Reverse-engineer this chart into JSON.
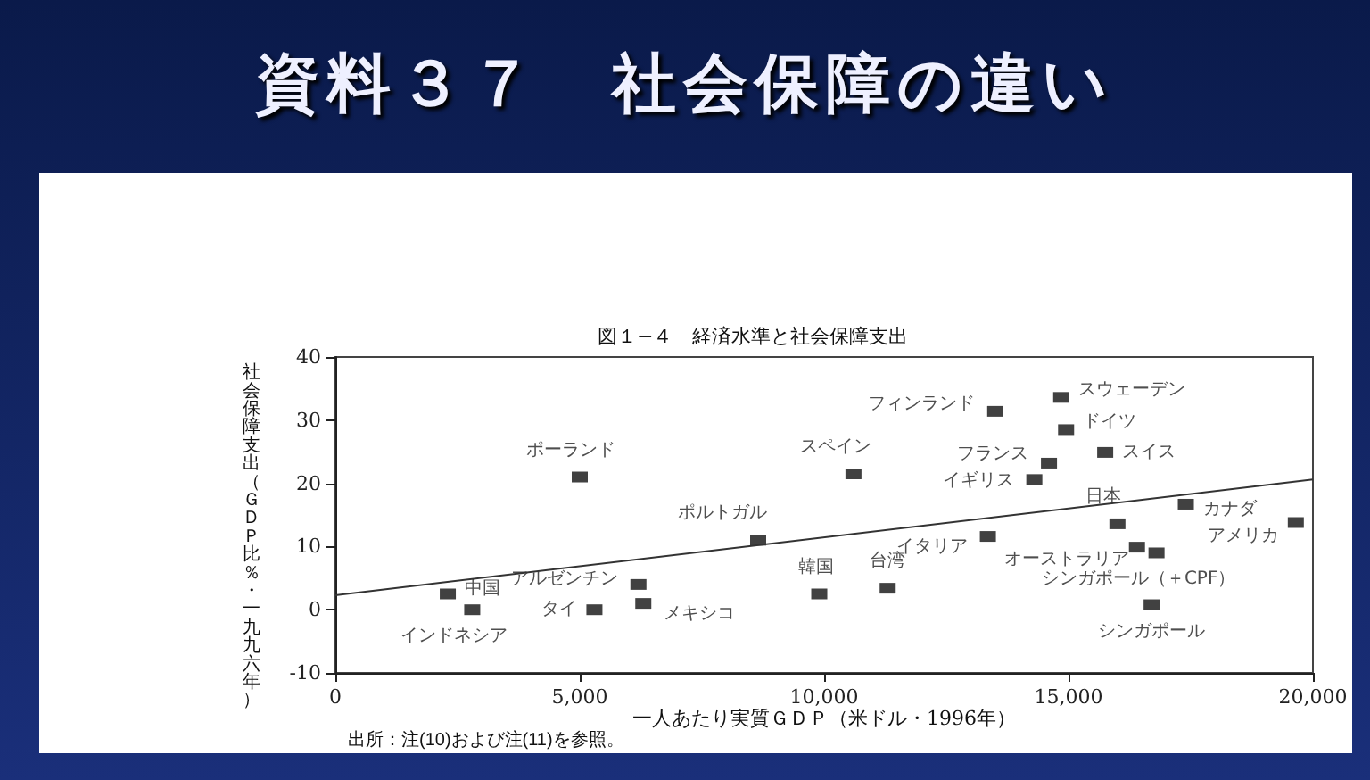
{
  "chart_data": {
    "type": "scatter",
    "title": "資料３７　社会保障の違い",
    "subtitle": "図１−４　経済水準と社会保障支出",
    "xlabel": "一人あたり実質ＧＤＰ（米ドル・1996年）",
    "ylabel": "社会保障支出（ＧＤＰ比％・一九九六年）",
    "annotations": [
      "出所：注(10)および注(11)を参照。"
    ],
    "xlim": [
      0,
      20000
    ],
    "xticks": [
      0,
      {
        "value": 5000,
        "label": "5,000"
      },
      {
        "value": 10000,
        "label": "10,000"
      },
      {
        "value": 15000,
        "label": "15,000"
      },
      {
        "value": 20000,
        "label": "20,000"
      }
    ],
    "ylim": [
      -10,
      40
    ],
    "yticks": [
      -10,
      0,
      10,
      20,
      30,
      40
    ],
    "marker": "square",
    "grid": false,
    "series": [
      {
        "name": "中国",
        "color": "#111111",
        "x": [
          2300
        ],
        "values": [
          2.5
        ]
      },
      {
        "name": "インドネシア",
        "color": "#111111",
        "x": [
          2800
        ],
        "values": [
          0
        ]
      },
      {
        "name": "ポーランド",
        "color": "#111111",
        "x": [
          5000
        ],
        "values": [
          21
        ]
      },
      {
        "name": "タイ",
        "color": "#111111",
        "x": [
          5300
        ],
        "values": [
          0
        ]
      },
      {
        "name": "アルゼンチン",
        "color": "#111111",
        "x": [
          6200
        ],
        "values": [
          4
        ]
      },
      {
        "name": "メキシコ",
        "color": "#111111",
        "x": [
          6300
        ],
        "values": [
          1
        ]
      },
      {
        "name": "ポルトガル",
        "color": "#111111",
        "x": [
          8650
        ],
        "values": [
          11
        ]
      },
      {
        "name": "韓国",
        "color": "#111111",
        "x": [
          9900
        ],
        "values": [
          2.5
        ]
      },
      {
        "name": "台湾",
        "color": "#111111",
        "x": [
          11300
        ],
        "values": [
          3.4
        ]
      },
      {
        "name": "スペイン",
        "color": "#111111",
        "x": [
          10600
        ],
        "values": [
          21.5
        ]
      },
      {
        "name": "イタリア",
        "color": "#111111",
        "x": [
          13350
        ],
        "values": [
          11.6
        ]
      },
      {
        "name": "フィンランド",
        "color": "#111111",
        "x": [
          13500
        ],
        "values": [
          31.4
        ]
      },
      {
        "name": "イギリス",
        "color": "#111111",
        "x": [
          14300
        ],
        "values": [
          20.6
        ]
      },
      {
        "name": "フランス",
        "color": "#111111",
        "x": [
          14600
        ],
        "values": [
          23.2
        ]
      },
      {
        "name": "スウェーデン",
        "color": "#111111",
        "x": [
          14850
        ],
        "values": [
          33.6
        ]
      },
      {
        "name": "ドイツ",
        "color": "#111111",
        "x": [
          14950
        ],
        "values": [
          28.5
        ]
      },
      {
        "name": "スイス",
        "color": "#111111",
        "x": [
          15750
        ],
        "values": [
          24.9
        ]
      },
      {
        "name": "日本",
        "color": "#111111",
        "x": [
          16000
        ],
        "values": [
          13.6
        ]
      },
      {
        "name": "オーストラリア",
        "color": "#111111",
        "x": [
          16400
        ],
        "values": [
          9.9
        ]
      },
      {
        "name": "シンガポール（＋CPF）",
        "color": "#111111",
        "x": [
          16800
        ],
        "values": [
          9
        ]
      },
      {
        "name": "シンガポール",
        "color": "#111111",
        "x": [
          16700
        ],
        "values": [
          0.8
        ]
      },
      {
        "name": "カナダ",
        "color": "#111111",
        "x": [
          17400
        ],
        "values": [
          16.7
        ]
      },
      {
        "name": "アメリカ",
        "color": "#111111",
        "x": [
          19650
        ],
        "values": [
          13.8
        ]
      },
      {
        "type": "line",
        "marker": "none",
        "color": "#333333",
        "x": [
          0,
          20000
        ],
        "values": [
          2.3,
          20.6
        ]
      }
    ]
  }
}
